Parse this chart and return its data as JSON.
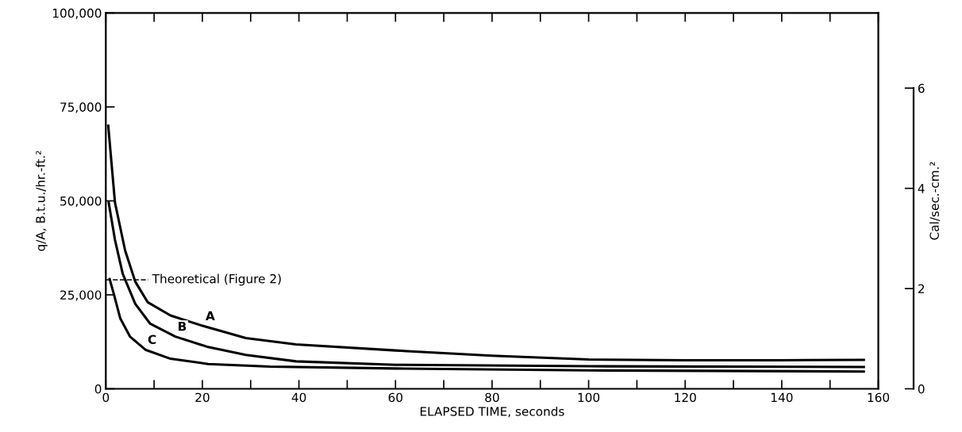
{
  "chart_data": {
    "type": "line",
    "xlabel": "ELAPSED TIME, seconds",
    "ylabel": "q/A, B.t.u./hr.-ft.²",
    "y2label": "Cal/sec.-cm.²",
    "xlim": [
      0,
      160
    ],
    "xticks": [
      0,
      {
        "value": 10,
        "label": null
      },
      20,
      {
        "value": 30,
        "label": null
      },
      40,
      {
        "value": 50,
        "label": null
      },
      60,
      {
        "value": 70,
        "label": null
      },
      80,
      {
        "value": 90,
        "label": null
      },
      100,
      {
        "value": 110,
        "label": null
      },
      120,
      {
        "value": 130,
        "label": null
      },
      140,
      {
        "value": 150,
        "label": null
      },
      160
    ],
    "ylim": [
      0,
      100000
    ],
    "yticks": [
      {
        "value": 0,
        "label": "0"
      },
      {
        "value": 25000,
        "label": "25,000"
      },
      {
        "value": 50000,
        "label": "50,000"
      },
      {
        "value": 75000,
        "label": "75,000"
      },
      {
        "value": 100000,
        "label": "100,000"
      }
    ],
    "y2lim": [
      0,
      7.5
    ],
    "y2ticks": [
      0,
      2,
      4,
      6
    ],
    "grid": false,
    "legend": false,
    "marker": "none",
    "line_style": "solid",
    "series": [
      {
        "color": "#000000",
        "x": [
          0.5,
          1.9,
          4,
          6.1,
          8.7,
          13.4,
          20.2,
          29,
          39.4,
          60,
          80,
          100,
          120,
          140,
          157
        ],
        "values": [
          70000,
          49500,
          36800,
          28500,
          23000,
          19500,
          16700,
          13500,
          11800,
          10200,
          8800,
          7800,
          7600,
          7600,
          7700
        ]
      },
      {
        "color": "#000000",
        "x": [
          0.6,
          1.9,
          3.5,
          6.1,
          9.2,
          14.4,
          21.2,
          29,
          39.4,
          60,
          100,
          157
        ],
        "values": [
          49500,
          39600,
          30600,
          22600,
          17300,
          13900,
          11100,
          9000,
          7300,
          6400,
          6000,
          5800
        ]
      },
      {
        "color": "#000000",
        "x": [
          0.8,
          1.7,
          3,
          5,
          8.2,
          13.4,
          21.2,
          34,
          60,
          100,
          157
        ],
        "values": [
          29200,
          25000,
          18700,
          13900,
          10400,
          8000,
          6600,
          5900,
          5400,
          4900,
          4600
        ]
      }
    ],
    "ref_lines": [
      {
        "axis": "y",
        "value": 29000,
        "label": "Theoretical (Figure 2)",
        "color": "#000000",
        "line_style": "dashed"
      }
    ],
    "annotations": [
      {
        "text": "A",
        "x": 20.2,
        "y": 16700
      },
      {
        "text": "B",
        "x": 14.4,
        "y": 13900
      },
      {
        "text": "C",
        "x": 8.2,
        "y": 10400
      }
    ]
  }
}
